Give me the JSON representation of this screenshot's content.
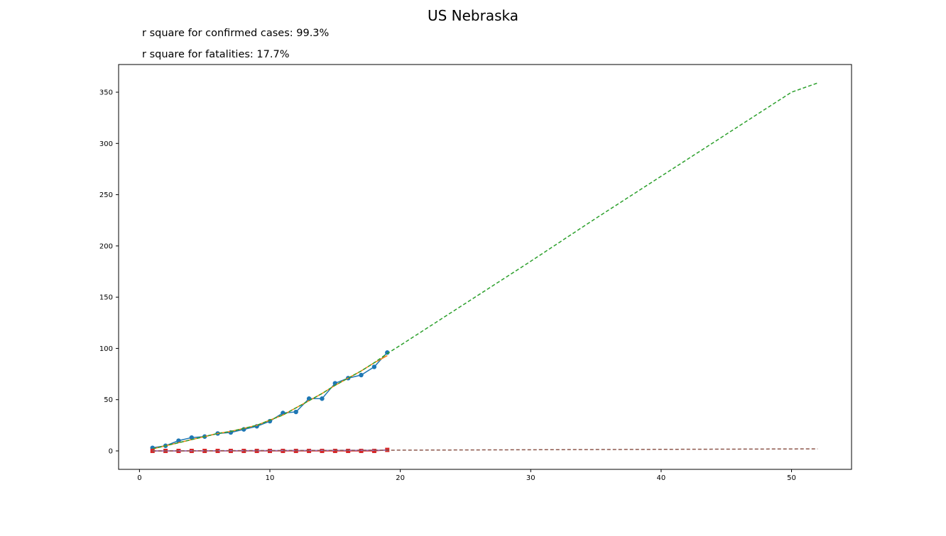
{
  "chart_data": {
    "type": "line",
    "title": "US Nebraska",
    "annotations": [
      "r square for confirmed cases: 99.3%",
      "r square for fatalities: 17.7%"
    ],
    "xlabel": "",
    "ylabel": "",
    "xlim": [
      -1.6,
      54.6
    ],
    "ylim": [
      -18,
      377
    ],
    "xticks": [
      0,
      10,
      20,
      30,
      40,
      50
    ],
    "yticks": [
      0,
      50,
      100,
      150,
      200,
      250,
      300,
      350
    ],
    "grid": false,
    "series": [
      {
        "kind": "markers-line",
        "marker": "circle",
        "color": "#1f77b4",
        "x": [
          1,
          2,
          3,
          4,
          5,
          6,
          7,
          8,
          9,
          10,
          11,
          12,
          13,
          14,
          15,
          16,
          17,
          18,
          19
        ],
        "y": [
          3,
          5,
          10,
          13,
          14,
          17,
          18,
          21,
          24,
          29,
          37,
          38,
          51,
          51,
          66,
          71,
          74,
          82,
          96
        ]
      },
      {
        "kind": "fit-line",
        "color": "#ff7f0e",
        "x": [
          1,
          2,
          3,
          4,
          5,
          6,
          7,
          8,
          9,
          10,
          11,
          12,
          13,
          14,
          15,
          16,
          17,
          18,
          19
        ],
        "y": [
          2,
          5,
          8,
          11,
          14,
          17,
          19,
          22,
          25,
          30,
          35,
          42,
          49,
          56,
          64,
          71,
          78,
          86,
          93
        ]
      },
      {
        "kind": "projection-dashed",
        "color": "#2ca02c",
        "x": [
          1,
          2,
          3,
          4,
          5,
          6,
          7,
          8,
          9,
          10,
          11,
          12,
          13,
          14,
          15,
          16,
          17,
          18,
          19,
          20,
          25,
          30,
          35,
          40,
          45,
          50,
          52
        ],
        "y": [
          2,
          5,
          8,
          11,
          14,
          17,
          19,
          22,
          25,
          30,
          35,
          42,
          49,
          56,
          64,
          71,
          78,
          86,
          95,
          103,
          144,
          185,
          227,
          268,
          309,
          350,
          359
        ]
      },
      {
        "kind": "markers-line",
        "marker": "square",
        "color": "#d62728",
        "x": [
          1,
          2,
          3,
          4,
          5,
          6,
          7,
          8,
          9,
          10,
          11,
          12,
          13,
          14,
          15,
          16,
          17,
          18,
          19
        ],
        "y": [
          0,
          0,
          0,
          0,
          0,
          0,
          0,
          0,
          0,
          0,
          0,
          0,
          0,
          0,
          0,
          0,
          0,
          0,
          1
        ]
      },
      {
        "kind": "fit-line",
        "color": "#9467bd",
        "x": [
          1,
          19
        ],
        "y": [
          0,
          0.7
        ]
      },
      {
        "kind": "projection-dashed",
        "color": "#8c564b",
        "x": [
          1,
          19,
          52
        ],
        "y": [
          0,
          0.7,
          2
        ]
      }
    ]
  }
}
